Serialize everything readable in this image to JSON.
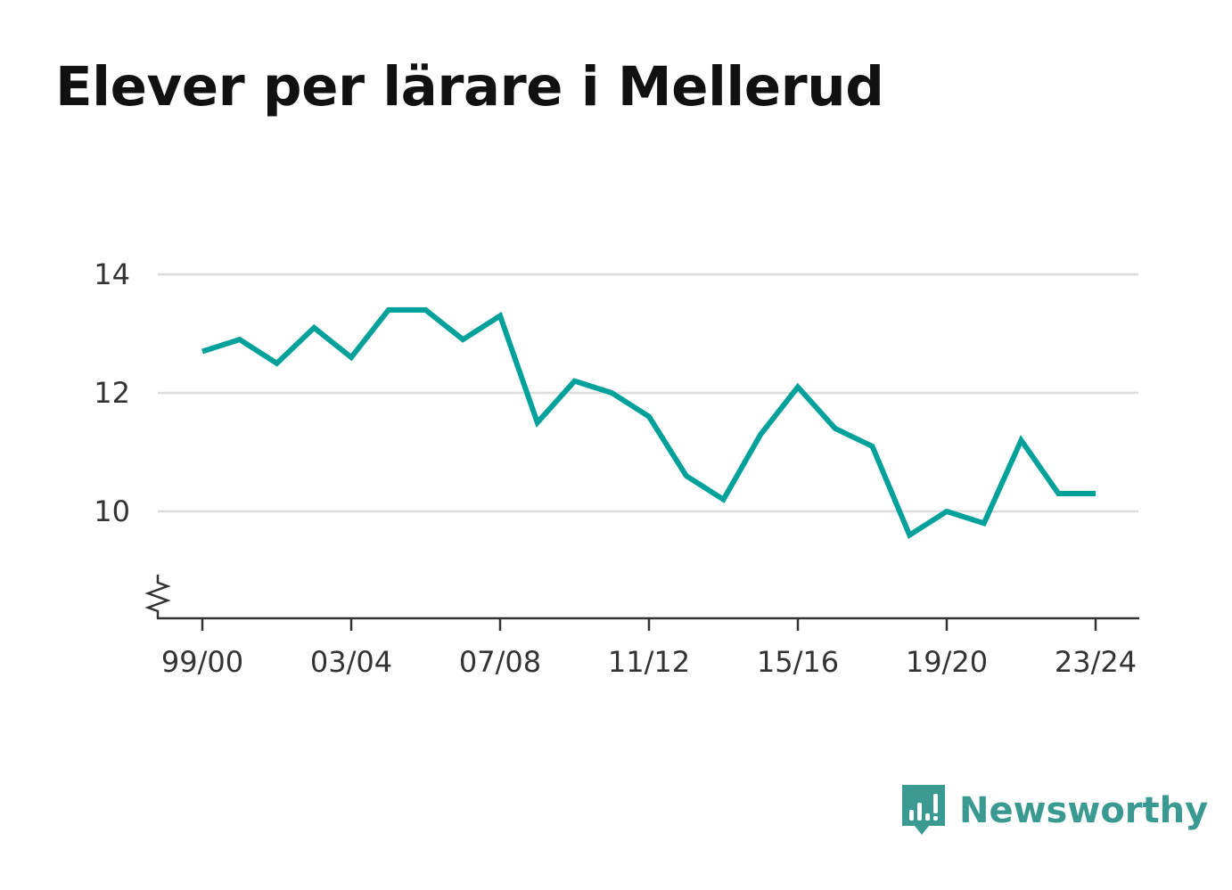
{
  "header": {
    "title": "Elever per lärare i Mellerud"
  },
  "brand": {
    "name": "Newsworthy",
    "icon": "newsworthy-logo-icon",
    "color": "#3a9a92"
  },
  "chart_data": {
    "type": "line",
    "title": "Elever per lärare i Mellerud",
    "xlabel": "",
    "ylabel": "",
    "x": [
      "99/00",
      "00/01",
      "01/02",
      "02/03",
      "03/04",
      "04/05",
      "05/06",
      "06/07",
      "07/08",
      "08/09",
      "09/10",
      "10/11",
      "11/12",
      "12/13",
      "13/14",
      "14/15",
      "15/16",
      "16/17",
      "17/18",
      "18/19",
      "19/20",
      "20/21",
      "21/22",
      "22/23",
      "23/24"
    ],
    "series": [
      {
        "values": [
          12.7,
          12.9,
          12.5,
          13.1,
          12.6,
          13.4,
          13.4,
          12.9,
          13.3,
          11.5,
          12.2,
          12.0,
          11.6,
          10.6,
          10.2,
          11.3,
          12.1,
          11.4,
          11.1,
          9.6,
          10.0,
          9.8,
          11.2,
          10.3,
          10.3
        ],
        "color": "#00a19a"
      }
    ],
    "x_tick_labels": [
      "99/00",
      "03/04",
      "07/08",
      "11/12",
      "15/16",
      "19/20",
      "23/24"
    ],
    "y_ticks": [
      10,
      12,
      14
    ],
    "ylim": [
      8.2,
      14.2
    ],
    "y_axis_break": true,
    "grid": true,
    "gridline_color": "#dddddd"
  }
}
